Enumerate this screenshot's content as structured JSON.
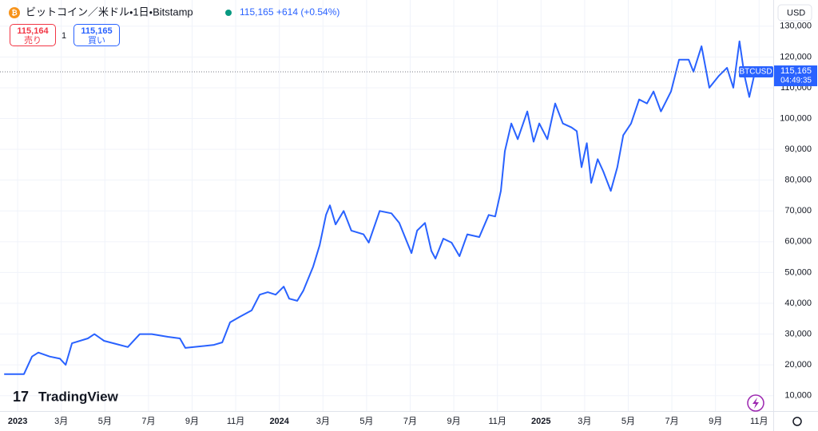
{
  "ui": {
    "symbol_title": "ビットコイン／米ドル・1日・Bitstamp",
    "last_price": "115,165",
    "change": "+614 (+0.54%)",
    "sell_price": "115,164",
    "sell_label": "売り",
    "quantity": "1",
    "buy_price": "115,165",
    "buy_label": "買い",
    "currency": "USD",
    "logo": "TradingView",
    "tag_symbol": "BTCUSD",
    "tag_price": "115,165",
    "tag_countdown": "04:49:35"
  },
  "chart_data": {
    "type": "line",
    "grid": true,
    "x": [
      -0.62,
      0.29,
      0.66,
      0.95,
      1.47,
      1.94,
      2.2,
      2.49,
      3.22,
      3.52,
      3.96,
      4.5,
      5.05,
      5.6,
      6.15,
      6.89,
      7.44,
      7.69,
      8.35,
      9.0,
      9.38,
      9.74,
      10.18,
      10.73,
      11.1,
      11.47,
      11.83,
      12.2,
      12.45,
      12.82,
      13.1,
      13.55,
      13.85,
      14.14,
      14.32,
      14.58,
      14.95,
      15.3,
      15.86,
      16.1,
      16.6,
      17.14,
      17.5,
      18.06,
      18.32,
      18.68,
      18.97,
      19.16,
      19.52,
      19.9,
      20.26,
      20.62,
      21.17,
      21.6,
      21.9,
      22.16,
      22.34,
      22.64,
      22.93,
      23.37,
      23.66,
      23.92,
      24.29,
      24.65,
      25.0,
      25.4,
      25.64,
      25.86,
      26.1,
      26.3,
      26.6,
      26.85,
      27.2,
      27.5,
      27.77,
      28.13,
      28.5,
      28.86,
      29.16,
      29.5,
      29.96,
      30.33,
      30.77,
      30.99,
      31.36,
      31.72,
      32.16,
      32.53,
      32.82,
      33.1,
      33.33,
      33.55,
      33.81
    ],
    "series": [
      {
        "name": "BTCUSD",
        "color": "#2962ff",
        "values": [
          17000,
          17000,
          22700,
          24000,
          22700,
          22000,
          20000,
          27000,
          28600,
          30000,
          27800,
          26800,
          25800,
          30000,
          30000,
          29100,
          28600,
          25500,
          26000,
          26500,
          27300,
          33800,
          35600,
          37700,
          42800,
          43600,
          42800,
          45400,
          41500,
          40800,
          44100,
          51900,
          58900,
          68700,
          71800,
          65600,
          70000,
          63600,
          62400,
          59700,
          70000,
          69200,
          66100,
          56300,
          63600,
          66100,
          57000,
          54500,
          61000,
          59700,
          55300,
          62400,
          61500,
          68700,
          68200,
          76500,
          89400,
          98400,
          93300,
          102300,
          92500,
          98400,
          93300,
          104900,
          98400,
          97100,
          95900,
          84200,
          92000,
          79100,
          86800,
          82900,
          76500,
          84200,
          94600,
          98400,
          106200,
          104900,
          108800,
          102300,
          108800,
          119100,
          119100,
          115200,
          123500,
          110000,
          113900,
          116500,
          110000,
          125100,
          113900,
          107000,
          115165
        ]
      }
    ],
    "xlim": [
      -0.81,
      34.65
    ],
    "ylim": [
      5000,
      138500
    ],
    "xticks": [
      {
        "value": 0,
        "label": "2023"
      },
      {
        "value": 2,
        "label": "3月"
      },
      {
        "value": 4,
        "label": "5月"
      },
      {
        "value": 6,
        "label": "7月"
      },
      {
        "value": 8,
        "label": "9月"
      },
      {
        "value": 10,
        "label": "11月"
      },
      {
        "value": 12,
        "label": "2024"
      },
      {
        "value": 14,
        "label": "3月"
      },
      {
        "value": 16,
        "label": "5月"
      },
      {
        "value": 18,
        "label": "7月"
      },
      {
        "value": 20,
        "label": "9月"
      },
      {
        "value": 22,
        "label": "11月"
      },
      {
        "value": 24,
        "label": "2025"
      },
      {
        "value": 26,
        "label": "3月"
      },
      {
        "value": 28,
        "label": "5月"
      },
      {
        "value": 30,
        "label": "7月"
      },
      {
        "value": 32,
        "label": "9月"
      },
      {
        "value": 34,
        "label": "11月"
      }
    ],
    "yticks": [
      {
        "value": 10000,
        "label": "10,000"
      },
      {
        "value": 20000,
        "label": "20,000"
      },
      {
        "value": 30000,
        "label": "30,000"
      },
      {
        "value": 40000,
        "label": "40,000"
      },
      {
        "value": 50000,
        "label": "50,000"
      },
      {
        "value": 60000,
        "label": "60,000"
      },
      {
        "value": 70000,
        "label": "70,000"
      },
      {
        "value": 80000,
        "label": "80,000"
      },
      {
        "value": 90000,
        "label": "90,000"
      },
      {
        "value": 100000,
        "label": "100,000"
      },
      {
        "value": 110000,
        "label": "110,000"
      },
      {
        "value": 120000,
        "label": "120,000"
      },
      {
        "value": 130000,
        "label": "130,000"
      }
    ]
  }
}
